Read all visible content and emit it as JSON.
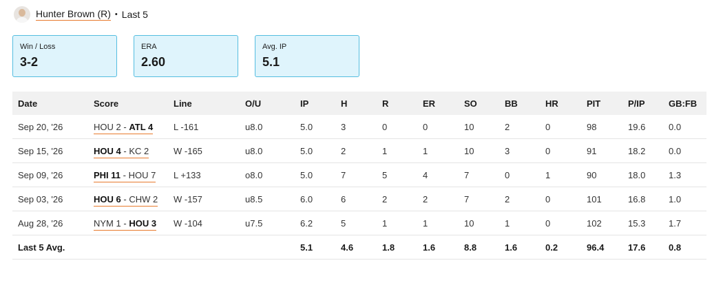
{
  "header": {
    "player": "Hunter Brown (R)",
    "separator": "•",
    "period": "Last 5"
  },
  "cards": [
    {
      "label": "Win / Loss",
      "value": "3-2"
    },
    {
      "label": "ERA",
      "value": "2.60"
    },
    {
      "label": "Avg. IP",
      "value": "5.1"
    }
  ],
  "table": {
    "columns": [
      "Date",
      "Score",
      "Line",
      "O/U",
      "IP",
      "H",
      "R",
      "ER",
      "SO",
      "BB",
      "HR",
      "PIT",
      "P/IP",
      "GB:FB"
    ],
    "score_separator": "-",
    "rows": [
      [
        "Sep 20, '26",
        {
          "teams": [
            "HOU 2",
            "ATL 4"
          ],
          "winner": 1
        },
        "L -161",
        "u8.0",
        "5.0",
        "3",
        "0",
        "0",
        "10",
        "2",
        "0",
        "98",
        "19.6",
        "0.0"
      ],
      [
        "Sep 15, '26",
        {
          "teams": [
            "HOU 4",
            "KC 2"
          ],
          "winner": 0
        },
        "W -165",
        "u8.0",
        "5.0",
        "2",
        "1",
        "1",
        "10",
        "3",
        "0",
        "91",
        "18.2",
        "0.0"
      ],
      [
        "Sep 09, '26",
        {
          "teams": [
            "PHI 11",
            "HOU 7"
          ],
          "winner": 0
        },
        "L +133",
        "o8.0",
        "5.0",
        "7",
        "5",
        "4",
        "7",
        "0",
        "1",
        "90",
        "18.0",
        "1.3"
      ],
      [
        "Sep 03, '26",
        {
          "teams": [
            "HOU 6",
            "CHW 2"
          ],
          "winner": 0
        },
        "W -157",
        "u8.5",
        "6.0",
        "6",
        "2",
        "2",
        "7",
        "2",
        "0",
        "101",
        "16.8",
        "1.0"
      ],
      [
        "Aug 28, '26",
        {
          "teams": [
            "NYM 1",
            "HOU 3"
          ],
          "winner": 1
        },
        "W -104",
        "u7.5",
        "6.2",
        "5",
        "1",
        "1",
        "10",
        "1",
        "0",
        "102",
        "15.3",
        "1.7"
      ]
    ],
    "footer": {
      "label": "Last 5 Avg.",
      "values": [
        "5.1",
        "4.6",
        "1.8",
        "1.6",
        "8.8",
        "1.6",
        "0.2",
        "96.4",
        "17.6",
        "0.8"
      ]
    }
  }
}
